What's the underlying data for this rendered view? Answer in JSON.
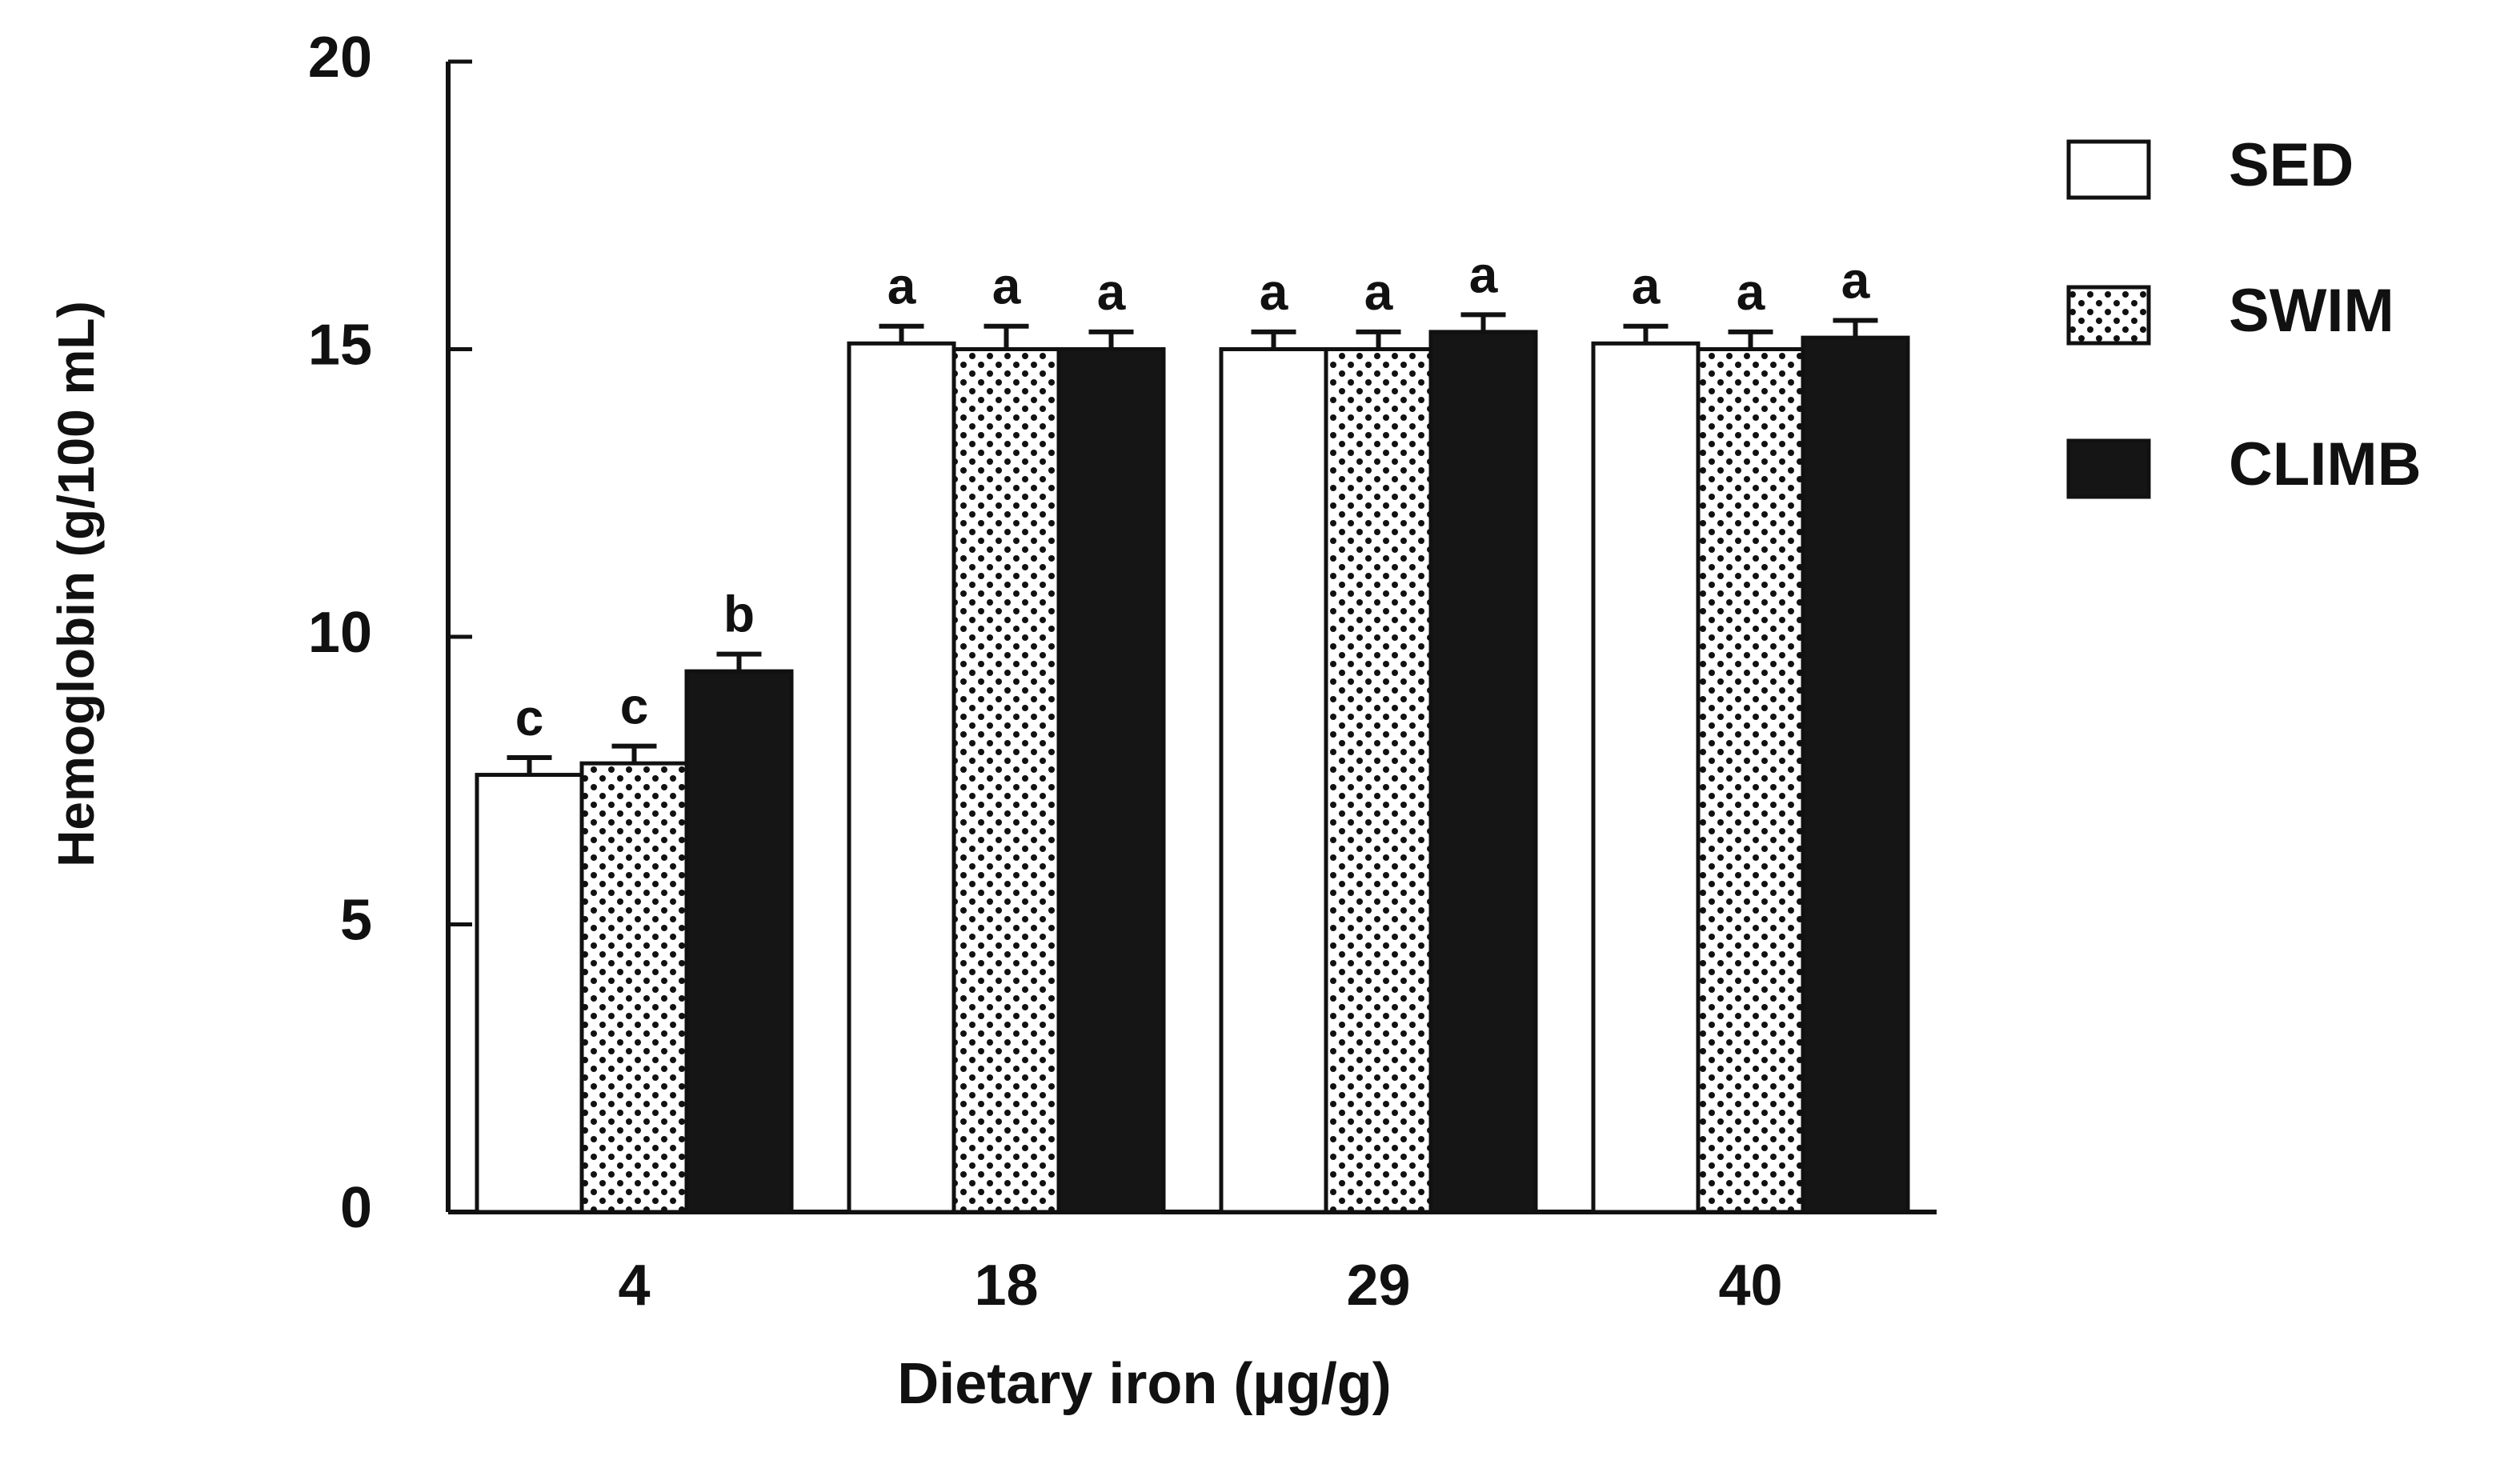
{
  "chart_data": {
    "type": "bar",
    "x_label": "Dietary iron (µg/g)",
    "y_label": "Hemoglobin (g/100 mL)",
    "categories": [
      "4",
      "18",
      "29",
      "40"
    ],
    "series": [
      {
        "name": "SED",
        "color": "#ffffff",
        "pattern": "none",
        "values": [
          7.6,
          15.1,
          15.0,
          15.1
        ],
        "errors": [
          0.3,
          0.3,
          0.3,
          0.3
        ],
        "letters": [
          "c",
          "a",
          "a",
          "a"
        ]
      },
      {
        "name": "SWIM",
        "color": "#ffffff",
        "pattern": "dots",
        "values": [
          7.8,
          15.0,
          15.0,
          15.0
        ],
        "errors": [
          0.3,
          0.4,
          0.3,
          0.3
        ],
        "letters": [
          "c",
          "a",
          "a",
          "a"
        ]
      },
      {
        "name": "CLIMB",
        "color": "#151515",
        "pattern": "none",
        "values": [
          9.4,
          15.0,
          15.3,
          15.2
        ],
        "errors": [
          0.3,
          0.3,
          0.3,
          0.3
        ],
        "letters": [
          "b",
          "a",
          "a",
          "a"
        ]
      }
    ],
    "ylim": [
      0,
      20
    ],
    "yticks": [
      0,
      5,
      10,
      15,
      20
    ],
    "grid": false,
    "legend": "right"
  }
}
